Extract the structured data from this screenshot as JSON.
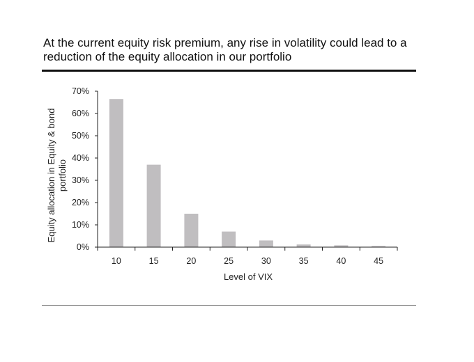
{
  "title": "At the current equity risk premium, any rise in volatility could lead to a reduction of the equity allocation in our portfolio",
  "chart_data": {
    "type": "bar",
    "categories": [
      "10",
      "15",
      "20",
      "25",
      "30",
      "35",
      "40",
      "45"
    ],
    "values": [
      66.5,
      37,
      15,
      7,
      3,
      1.2,
      0.8,
      0.5
    ],
    "xlabel": "Level of VIX",
    "ylabel_line1": "Equity allocation in Equity & bond",
    "ylabel_line2": "portfolio",
    "ylim": [
      0,
      70
    ],
    "yticks": [
      0,
      10,
      20,
      30,
      40,
      50,
      60,
      70
    ],
    "ytick_labels": [
      "0%",
      "10%",
      "20%",
      "30%",
      "40%",
      "50%",
      "60%",
      "70%"
    ],
    "grid": false,
    "bar_color": "#c0bec0"
  }
}
